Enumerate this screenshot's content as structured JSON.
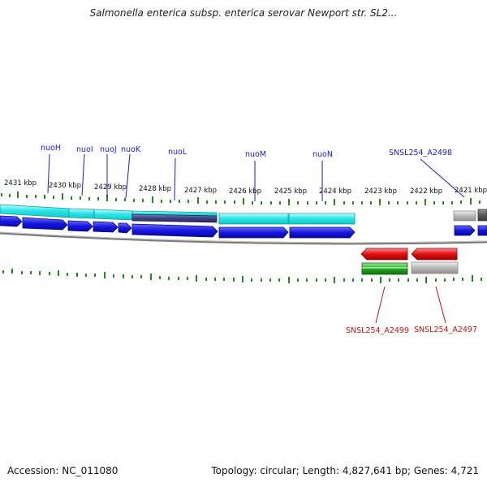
{
  "header": {
    "title": "Salmonella enterica subsp. enterica serovar Newport str. SL2..."
  },
  "footer": {
    "accession": "Accession: NC_011080",
    "summary": "Topology: circular; Length: 4,827,641 bp; Genes: 4,721"
  },
  "ruler": {
    "labels": [
      "2431 kbp",
      "2430 kbp",
      "2429 kbp",
      "2428 kbp",
      "2427 kbp",
      "2426 kbp",
      "2425 kbp",
      "2424 kbp",
      "2423 kbp",
      "2422 kbp",
      "2421 kbp"
    ]
  },
  "genes_top": [
    "nuoH",
    "nuoI",
    "nuoJ",
    "nuoK",
    "nuoL",
    "nuoM",
    "nuoN",
    "SNSL254_A2498"
  ],
  "genes_bottom": [
    "SNSL254_A2499",
    "SNSL254_A2497"
  ],
  "colors": {
    "top_label": "#1a1acc",
    "bottom_label": "#cc1111",
    "cds_blue": "#1616e0",
    "cyan": "#21e3e3",
    "slate": "#3a4080",
    "red": "#e01010",
    "green": "#22aa22",
    "grey": "#b8b8b8",
    "tick": "#1f8a1f",
    "backbone": "#7a7a7a"
  }
}
